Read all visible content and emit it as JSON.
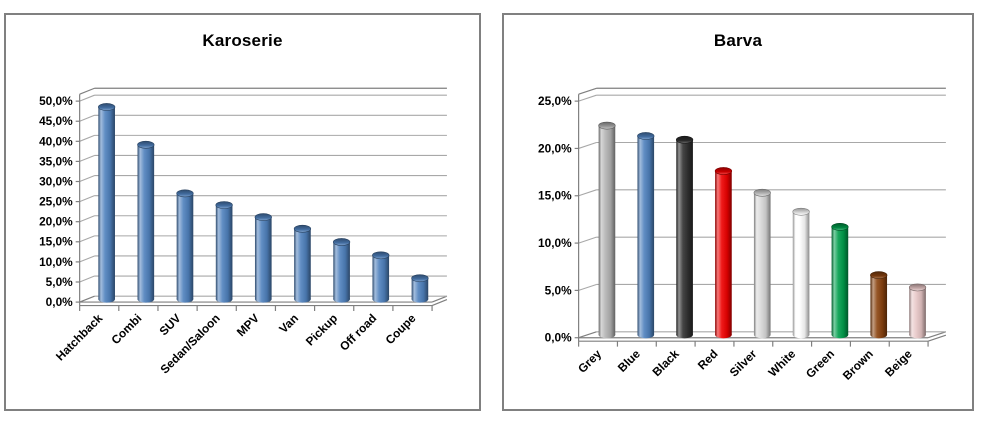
{
  "window": {
    "background": "#FFFFFF",
    "panel_border_color": "#808080",
    "text_color": "#000000",
    "gridline_color": "#A8A8A8",
    "axis_color": "#7F7F7F"
  },
  "chart_data": [
    {
      "type": "bar",
      "style": "3d-cylinder",
      "title": "Karoserie",
      "categories": [
        "Hatchback",
        "Combi",
        "SUV",
        "Sedan/Saloon",
        "MPV",
        "Van",
        "Pickup",
        "Off road",
        "Coupe"
      ],
      "values": [
        47.8,
        38.4,
        26.3,
        23.4,
        20.4,
        17.5,
        14.2,
        10.9,
        5.2
      ],
      "unit": "%",
      "decimal_separator": ",",
      "bar_color": "#4F81BD",
      "ylim": [
        0,
        50
      ],
      "ytick_step": 5,
      "ytick_labels": [
        "0,0%",
        "5,0%",
        "10,0%",
        "15,0%",
        "20,0%",
        "25,0%",
        "30,0%",
        "35,0%",
        "40,0%",
        "45,0%",
        "50,0%"
      ],
      "xlabel": "",
      "ylabel": "",
      "grid": true,
      "legend": false,
      "category_label_rotation_deg": -45
    },
    {
      "type": "bar",
      "style": "3d-cylinder",
      "title": "Barva",
      "categories": [
        "Grey",
        "Blue",
        "Black",
        "Red",
        "Silver",
        "White",
        "Green",
        "Brown",
        "Beige"
      ],
      "values": [
        22.1,
        21.0,
        20.6,
        17.3,
        15.0,
        13.0,
        11.4,
        6.3,
        5.0
      ],
      "unit": "%",
      "decimal_separator": ",",
      "bar_colors": [
        "#B3B3B3",
        "#4F81BD",
        "#303030",
        "#EE0000",
        "#D9D9D9",
        "#FFFFFF",
        "#009E4C",
        "#8A430F",
        "#E8C7C7"
      ],
      "ylim": [
        0,
        25
      ],
      "ytick_step": 5,
      "ytick_labels": [
        "0,0%",
        "5,0%",
        "10,0%",
        "15,0%",
        "20,0%",
        "25,0%"
      ],
      "xlabel": "",
      "ylabel": "",
      "grid": true,
      "legend": false,
      "category_label_rotation_deg": -45
    }
  ]
}
